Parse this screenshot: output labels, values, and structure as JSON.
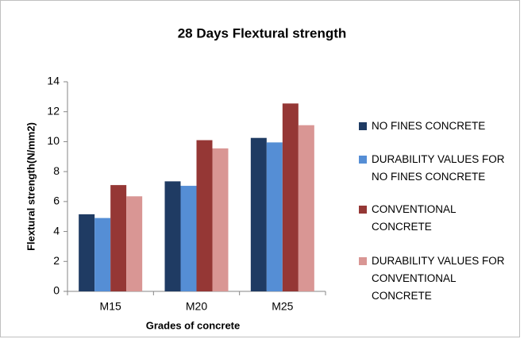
{
  "chart_data": {
    "type": "bar",
    "title": "28 Days Flextural strength",
    "x_label": "Grades of concrete",
    "y_label": "Flextural strength(N/mm2)",
    "categories": [
      "M15",
      "M20",
      "M25"
    ],
    "series": [
      {
        "name": "NO FINES CONCRETE",
        "color": "#1f3b63",
        "values": [
          5.15,
          7.35,
          10.25
        ]
      },
      {
        "name": "DURABILITY VALUES FOR NO FINES CONCRETE",
        "color": "#558ed5",
        "values": [
          4.9,
          7.05,
          9.95
        ]
      },
      {
        "name": "CONVENTIONAL CONCRETE",
        "color": "#953735",
        "values": [
          7.1,
          10.1,
          12.55
        ]
      },
      {
        "name": "DURABILITY VALUES FOR CONVENTIONAL CONCRETE",
        "color": "#d99694",
        "values": [
          6.35,
          9.55,
          11.1
        ]
      }
    ],
    "ylim": [
      0,
      14
    ],
    "yticks": [
      0,
      2,
      4,
      6,
      8,
      10,
      12,
      14
    ],
    "grid": false,
    "legend": "right"
  }
}
